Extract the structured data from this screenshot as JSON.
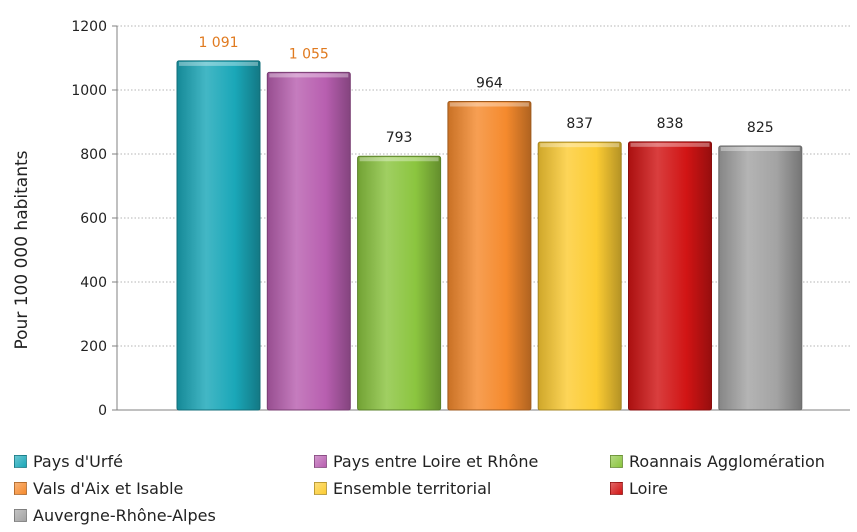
{
  "chart_data": {
    "type": "bar",
    "title": "",
    "xlabel": "",
    "ylabel": "Pour 100 000 habitants",
    "ylim": [
      0,
      1200
    ],
    "yticks": [
      0,
      200,
      400,
      600,
      800,
      1000,
      1200
    ],
    "grid": true,
    "legend_position": "bottom",
    "categories": [
      "Pays d'Urfé",
      "Pays entre Loire et Rhône",
      "Roannais Agglomération",
      "Vals d'Aix et Isable",
      "Ensemble territorial",
      "Loire",
      "Auvergne-Rhône-Alpes"
    ],
    "values": [
      1091,
      1055,
      793,
      964,
      837,
      838,
      825
    ],
    "data_labels": [
      "1 091",
      "1 055",
      "793",
      "964",
      "837",
      "838",
      "825"
    ],
    "colors": [
      "#1aa7b8",
      "#b85fb0",
      "#8bc53f",
      "#f58a2d",
      "#fccc33",
      "#d11414",
      "#a3a3a3"
    ],
    "label_colors": [
      "#e07a1f",
      "#e07a1f",
      "#222222",
      "#222222",
      "#222222",
      "#222222",
      "#222222"
    ]
  }
}
